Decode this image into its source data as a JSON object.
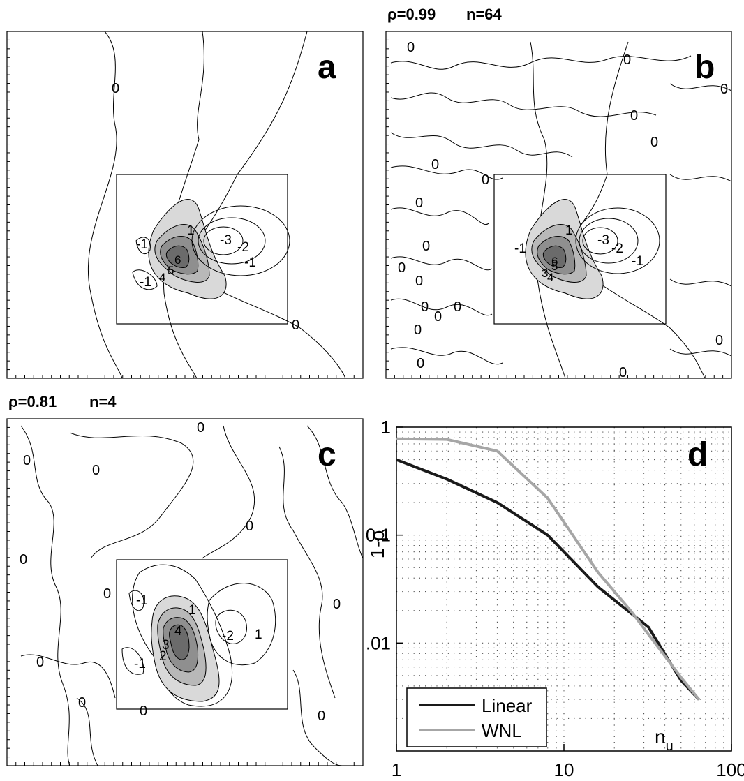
{
  "panels": {
    "a": {
      "letter": "a",
      "header": "",
      "box_contour_labels": [
        "0",
        "0",
        "-1",
        "-1",
        "-2",
        "-3",
        "1",
        "4",
        "5",
        "6",
        "-1"
      ]
    },
    "b": {
      "letter": "b",
      "header_rho": "ρ=0.99",
      "header_n": "n=64",
      "contour_labels": [
        "0",
        "0",
        "0",
        "0",
        "0",
        "0",
        "0",
        "0",
        "0",
        "0",
        "0",
        "0",
        "0",
        "0",
        "0",
        "0",
        "0",
        "0"
      ],
      "box_contour_labels": [
        "-1",
        "-2",
        "-3",
        "1",
        "3",
        "4",
        "5",
        "6",
        "-1"
      ]
    },
    "c": {
      "letter": "c",
      "header_rho": "ρ=0.81",
      "header_n": "n=4",
      "contour_labels": [
        "0",
        "0",
        "0",
        "0",
        "0",
        "0",
        "0",
        "0",
        "0",
        "0",
        "0"
      ],
      "box_contour_labels": [
        "1",
        "-1",
        "-2",
        "1",
        "2",
        "3",
        "4",
        "-1"
      ]
    },
    "d": {
      "letter": "d"
    }
  },
  "chart_data": {
    "type": "line",
    "title": "",
    "xlabel": "n_u",
    "ylabel": "1-ρ",
    "xscale": "log",
    "yscale": "log",
    "xlim": [
      1,
      100
    ],
    "ylim": [
      0.001,
      1
    ],
    "xticks": [
      1,
      10,
      100
    ],
    "xtick_labels": [
      "1",
      "10",
      "100"
    ],
    "yticks": [
      0.01,
      0.1,
      1
    ],
    "ytick_labels": [
      ".01",
      "0.1",
      "1"
    ],
    "grid": true,
    "legend": {
      "placement": "bottom-left",
      "entries": [
        "Linear",
        "WNL"
      ]
    },
    "series": [
      {
        "name": "Linear",
        "color": "#1a1a1a",
        "x": [
          1,
          2,
          4,
          8,
          16,
          25,
          32,
          50,
          64
        ],
        "y": [
          0.5,
          0.33,
          0.2,
          0.1,
          0.033,
          0.019,
          0.014,
          0.0045,
          0.003
        ]
      },
      {
        "name": "WNL",
        "color": "#a6a6a6",
        "x": [
          1,
          2,
          4,
          8,
          16,
          25,
          32,
          50,
          64
        ],
        "y": [
          0.78,
          0.77,
          0.6,
          0.22,
          0.045,
          0.02,
          0.012,
          0.0048,
          0.003
        ]
      }
    ]
  }
}
